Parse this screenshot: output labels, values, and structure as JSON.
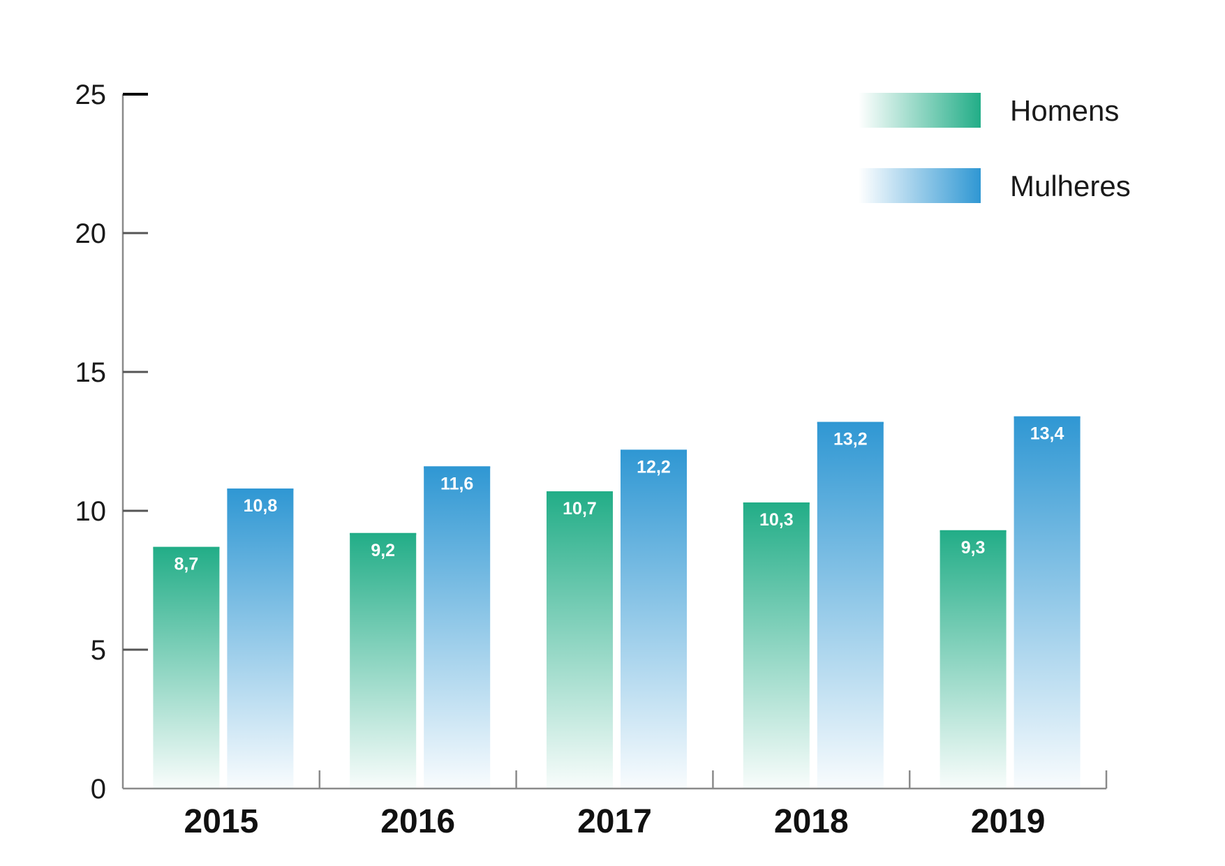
{
  "chart_data": {
    "type": "bar",
    "categories": [
      "2015",
      "2016",
      "2017",
      "2018",
      "2019"
    ],
    "series": [
      {
        "name": "Homens",
        "values": [
          8.7,
          9.2,
          10.7,
          10.3,
          9.3
        ],
        "labels": [
          "8,7",
          "9,2",
          "10,7",
          "10,3",
          "9,3"
        ],
        "color": "#22ad87"
      },
      {
        "name": "Mulheres",
        "values": [
          10.8,
          11.6,
          12.2,
          13.2,
          13.4
        ],
        "labels": [
          "10,8",
          "11,6",
          "12,2",
          "13,2",
          "13,4"
        ],
        "color": "#2f97d3"
      }
    ],
    "yticks": [
      "0",
      "5",
      "10",
      "15",
      "20",
      "25"
    ],
    "ylim": [
      0,
      25
    ],
    "grid": false,
    "legend": "top-right"
  }
}
